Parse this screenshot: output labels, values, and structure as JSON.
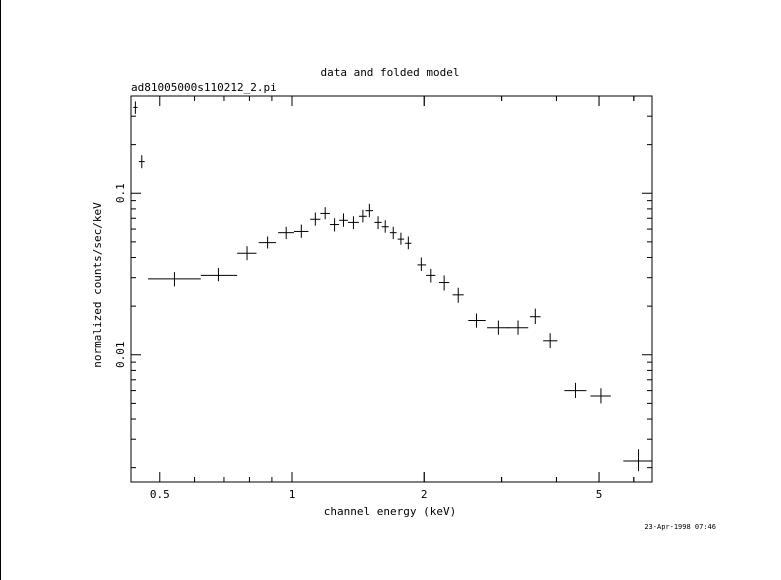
{
  "chart_data": {
    "type": "scatter",
    "title": "data and folded model",
    "subtitle": "ad81005000s110212_2.pi",
    "xlabel": "channel energy (keV)",
    "ylabel": "normalized counts/sec/keV",
    "timestamp": "23-Apr-1998 07:46",
    "x_scale": "log",
    "y_scale": "log",
    "xlim": [
      0.43,
      6.6
    ],
    "ylim": [
      0.00163,
      0.4
    ],
    "x_ticks": [
      {
        "value": 0.5,
        "label": "0.5"
      },
      {
        "value": 1,
        "label": "1"
      },
      {
        "value": 2,
        "label": "2"
      },
      {
        "value": 5,
        "label": "5"
      }
    ],
    "y_ticks": [
      {
        "value": 0.01,
        "label": "0.01"
      },
      {
        "value": 0.1,
        "label": "0.1"
      }
    ],
    "grid": false,
    "series": [
      {
        "marker": "cross-with-error-bars",
        "points": [
          {
            "x": 0.44,
            "xlo": 0.435,
            "xhi": 0.445,
            "y": 0.34,
            "ylo": 0.31,
            "yhi": 0.37
          },
          {
            "x": 0.455,
            "xlo": 0.448,
            "xhi": 0.462,
            "y": 0.157,
            "ylo": 0.143,
            "yhi": 0.172
          },
          {
            "x": 0.54,
            "xlo": 0.47,
            "xhi": 0.62,
            "y": 0.0295,
            "ylo": 0.0265,
            "yhi": 0.0325
          },
          {
            "x": 0.68,
            "xlo": 0.62,
            "xhi": 0.75,
            "y": 0.031,
            "ylo": 0.0285,
            "yhi": 0.0345
          },
          {
            "x": 0.79,
            "xlo": 0.75,
            "xhi": 0.83,
            "y": 0.0425,
            "ylo": 0.0385,
            "yhi": 0.047
          },
          {
            "x": 0.88,
            "xlo": 0.84,
            "xhi": 0.92,
            "y": 0.0495,
            "ylo": 0.0455,
            "yhi": 0.054
          },
          {
            "x": 0.97,
            "xlo": 0.93,
            "xhi": 1.01,
            "y": 0.057,
            "ylo": 0.052,
            "yhi": 0.062
          },
          {
            "x": 1.05,
            "xlo": 1.01,
            "xhi": 1.09,
            "y": 0.058,
            "ylo": 0.053,
            "yhi": 0.064
          },
          {
            "x": 1.13,
            "xlo": 1.1,
            "xhi": 1.16,
            "y": 0.069,
            "ylo": 0.063,
            "yhi": 0.076
          },
          {
            "x": 1.19,
            "xlo": 1.16,
            "xhi": 1.22,
            "y": 0.075,
            "ylo": 0.069,
            "yhi": 0.082
          },
          {
            "x": 1.25,
            "xlo": 1.22,
            "xhi": 1.28,
            "y": 0.064,
            "ylo": 0.058,
            "yhi": 0.07
          },
          {
            "x": 1.31,
            "xlo": 1.28,
            "xhi": 1.34,
            "y": 0.068,
            "ylo": 0.062,
            "yhi": 0.075
          },
          {
            "x": 1.38,
            "xlo": 1.34,
            "xhi": 1.42,
            "y": 0.066,
            "ylo": 0.06,
            "yhi": 0.072
          },
          {
            "x": 1.45,
            "xlo": 1.42,
            "xhi": 1.48,
            "y": 0.072,
            "ylo": 0.066,
            "yhi": 0.079
          },
          {
            "x": 1.5,
            "xlo": 1.47,
            "xhi": 1.53,
            "y": 0.078,
            "ylo": 0.071,
            "yhi": 0.086
          },
          {
            "x": 1.57,
            "xlo": 1.54,
            "xhi": 1.6,
            "y": 0.066,
            "ylo": 0.06,
            "yhi": 0.072
          },
          {
            "x": 1.63,
            "xlo": 1.6,
            "xhi": 1.66,
            "y": 0.062,
            "ylo": 0.057,
            "yhi": 0.068
          },
          {
            "x": 1.7,
            "xlo": 1.67,
            "xhi": 1.73,
            "y": 0.057,
            "ylo": 0.052,
            "yhi": 0.062
          },
          {
            "x": 1.77,
            "xlo": 1.74,
            "xhi": 1.8,
            "y": 0.052,
            "ylo": 0.048,
            "yhi": 0.057
          },
          {
            "x": 1.84,
            "xlo": 1.81,
            "xhi": 1.87,
            "y": 0.049,
            "ylo": 0.045,
            "yhi": 0.054
          },
          {
            "x": 1.97,
            "xlo": 1.93,
            "xhi": 2.02,
            "y": 0.036,
            "ylo": 0.033,
            "yhi": 0.04
          },
          {
            "x": 2.07,
            "xlo": 2.02,
            "xhi": 2.12,
            "y": 0.031,
            "ylo": 0.028,
            "yhi": 0.034
          },
          {
            "x": 2.22,
            "xlo": 2.16,
            "xhi": 2.28,
            "y": 0.028,
            "ylo": 0.025,
            "yhi": 0.031
          },
          {
            "x": 2.39,
            "xlo": 2.32,
            "xhi": 2.46,
            "y": 0.0235,
            "ylo": 0.021,
            "yhi": 0.026
          },
          {
            "x": 2.63,
            "xlo": 2.52,
            "xhi": 2.76,
            "y": 0.0163,
            "ylo": 0.0147,
            "yhi": 0.018
          },
          {
            "x": 2.95,
            "xlo": 2.78,
            "xhi": 3.12,
            "y": 0.0147,
            "ylo": 0.0133,
            "yhi": 0.0163
          },
          {
            "x": 3.27,
            "xlo": 3.1,
            "xhi": 3.45,
            "y": 0.0147,
            "ylo": 0.0133,
            "yhi": 0.0163
          },
          {
            "x": 3.58,
            "xlo": 3.48,
            "xhi": 3.68,
            "y": 0.0172,
            "ylo": 0.0155,
            "yhi": 0.0193
          },
          {
            "x": 3.87,
            "xlo": 3.73,
            "xhi": 4.02,
            "y": 0.0122,
            "ylo": 0.011,
            "yhi": 0.0136
          },
          {
            "x": 4.42,
            "xlo": 4.17,
            "xhi": 4.68,
            "y": 0.006,
            "ylo": 0.0054,
            "yhi": 0.0067
          },
          {
            "x": 5.05,
            "xlo": 4.78,
            "xhi": 5.32,
            "y": 0.00555,
            "ylo": 0.005,
            "yhi": 0.0062
          },
          {
            "x": 6.15,
            "xlo": 5.68,
            "xhi": 6.6,
            "y": 0.0022,
            "ylo": 0.0019,
            "yhi": 0.0026
          }
        ]
      }
    ]
  }
}
